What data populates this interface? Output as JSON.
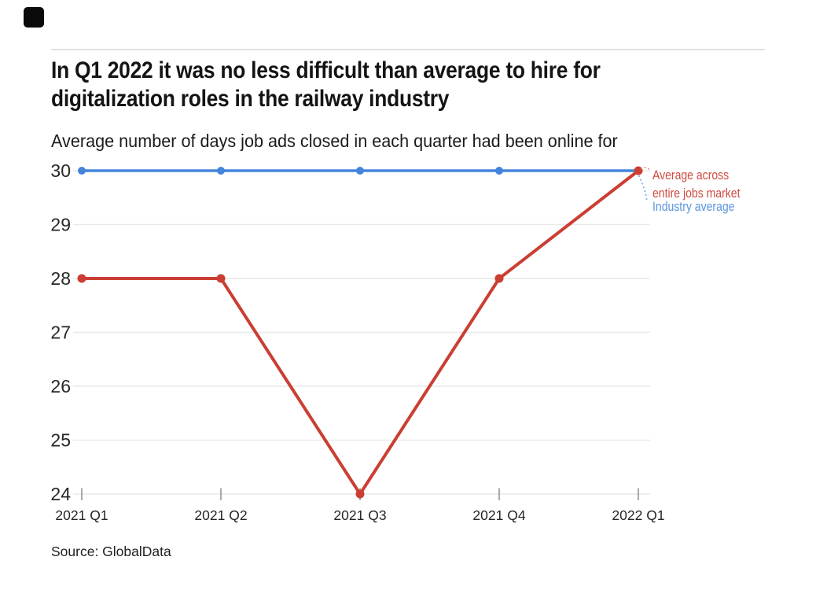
{
  "header": {
    "logo": "black-square-logo",
    "title_line1": "In Q1 2022 it was no less difficult than average to hire for",
    "title_line2": "digitalization roles in the railway industry",
    "subtitle": "Average number of days job ads closed in each quarter had been online for"
  },
  "footer": {
    "source": "Source: GlobalData"
  },
  "chart_data": {
    "type": "line",
    "title": "In Q1 2022 it was no less difficult than average to hire for digitalization roles in the railway industry",
    "subtitle": "Average number of days job ads closed in each quarter had been online for",
    "categories": [
      "2021 Q1",
      "2021 Q2",
      "2021 Q3",
      "2021 Q4",
      "2022 Q1"
    ],
    "series": [
      {
        "name": "Industry average",
        "color": "#4285dc",
        "values": [
          30,
          30,
          30,
          30,
          30
        ]
      },
      {
        "name": "Average across entire jobs market",
        "color": "#cb3e33",
        "values": [
          28,
          28,
          24,
          28,
          30
        ]
      }
    ],
    "ylim": [
      24,
      30
    ],
    "yticks": [
      24,
      25,
      26,
      27,
      28,
      29,
      30
    ],
    "grid": true,
    "legend_position": "right-of-last-point",
    "legend": {
      "market_line1": "Average across",
      "market_line2": "entire jobs market",
      "industry": "Industry average",
      "market_color": "#cf4b41",
      "industry_color": "#5b95de"
    },
    "axis_text_color": "#262626",
    "grid_color": "#e9e9e9",
    "source": "Source: GlobalData"
  }
}
